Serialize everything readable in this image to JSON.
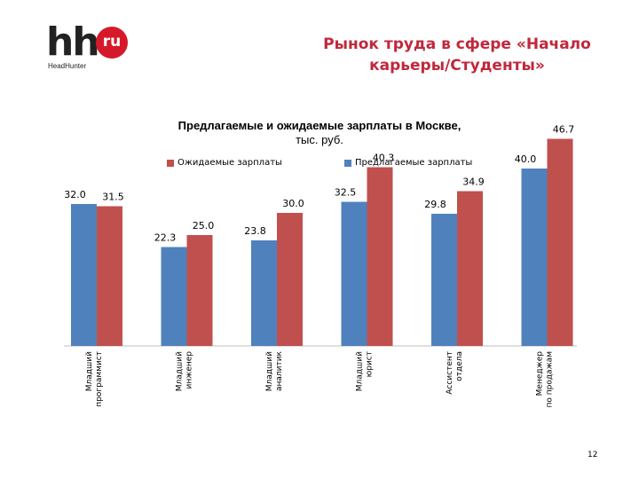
{
  "logo": {
    "letters": "hh",
    "badge": "ru",
    "subtitle": "HeadHunter",
    "colors": {
      "letters": "#222222",
      "badge": "#d6192a"
    }
  },
  "slide_title": "Рынок труда в сфере «Начало карьеры/Студенты»",
  "page_number": "12",
  "colors": {
    "expected": "#c0504d",
    "offered": "#4f81bd"
  },
  "chart_data": {
    "type": "bar",
    "title": "Предлагаемые и ожидаемые зарплаты в Москве,",
    "subtitle": "тыс. руб.",
    "legend_position": "top",
    "grid": false,
    "ylim": [
      0,
      50
    ],
    "categories": [
      "Младший программист",
      "Младший инженер",
      "Младший аналитик",
      "Младший юрист",
      "Ассистент отдела",
      "Менеджер по продажам"
    ],
    "series": [
      {
        "name": "Предлагаемые зарплаты",
        "values": [
          32.0,
          22.3,
          23.8,
          32.5,
          29.8,
          40.0
        ],
        "labels": [
          "32.0",
          "22.3",
          "23.8",
          "32.5",
          "29.8",
          "40.0"
        ]
      },
      {
        "name": "Ожидаемые зарплаты",
        "values": [
          31.5,
          25.0,
          30.0,
          40.3,
          34.9,
          46.7
        ],
        "labels": [
          "31.5",
          "25.0",
          "30.0",
          "40.3",
          "34.9",
          "46.7"
        ]
      }
    ]
  }
}
